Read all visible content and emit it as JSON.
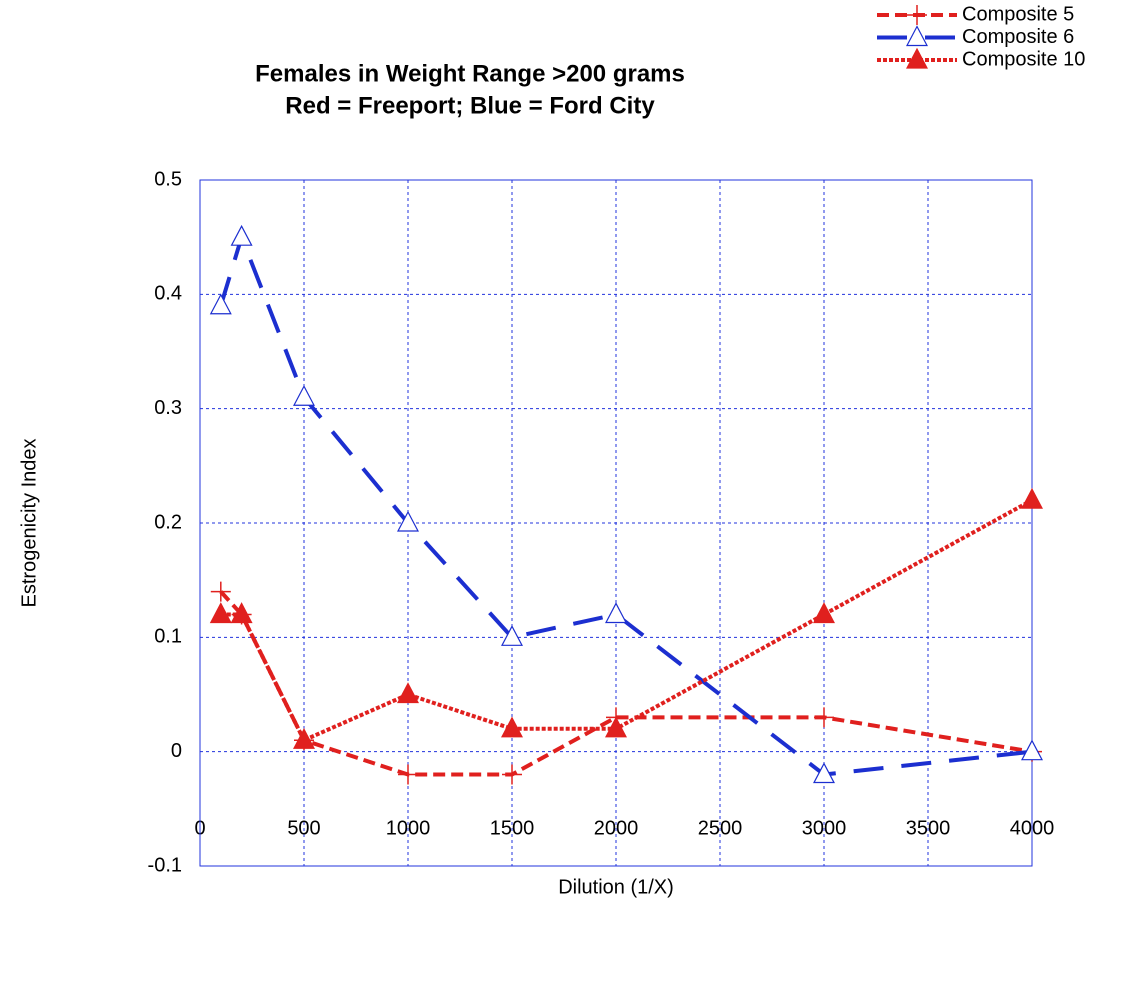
{
  "chart_data": {
    "type": "line",
    "title": "Females in Weight Range >200 grams",
    "subtitle": "Red = Freeport; Blue = Ford City",
    "x_label": "Dilution (1/X)",
    "y_label": "Estrogenicity Index",
    "x": [
      100,
      200,
      500,
      1000,
      1500,
      2000,
      3000,
      4000
    ],
    "series": [
      {
        "name": "Composite 5",
        "color": "#e0201e",
        "marker": "plus",
        "linestyle": "dashed",
        "values": [
          0.14,
          0.12,
          0.01,
          -0.02,
          -0.02,
          0.03,
          0.03,
          0.0
        ]
      },
      {
        "name": "Composite 6",
        "color": "#1c2fd0",
        "marker": "triangle-open",
        "linestyle": "longdash",
        "values": [
          0.39,
          0.45,
          0.31,
          0.2,
          0.1,
          0.12,
          -0.02,
          0.0
        ]
      },
      {
        "name": "Composite 10",
        "color": "#e0201e",
        "marker": "triangle",
        "linestyle": "dotted",
        "values": [
          0.12,
          0.12,
          0.01,
          0.05,
          0.02,
          0.02,
          0.12,
          0.22
        ]
      }
    ],
    "xlim": [
      0,
      4000
    ],
    "xticks": [
      0,
      500,
      1000,
      1500,
      2000,
      2500,
      3000,
      3500,
      4000
    ],
    "ylim": [
      -0.1,
      0.5
    ],
    "yticks": [
      -0.1,
      0,
      0.1,
      0.2,
      0.3,
      0.4,
      0.5
    ],
    "grid": true,
    "legend": "top-right"
  }
}
